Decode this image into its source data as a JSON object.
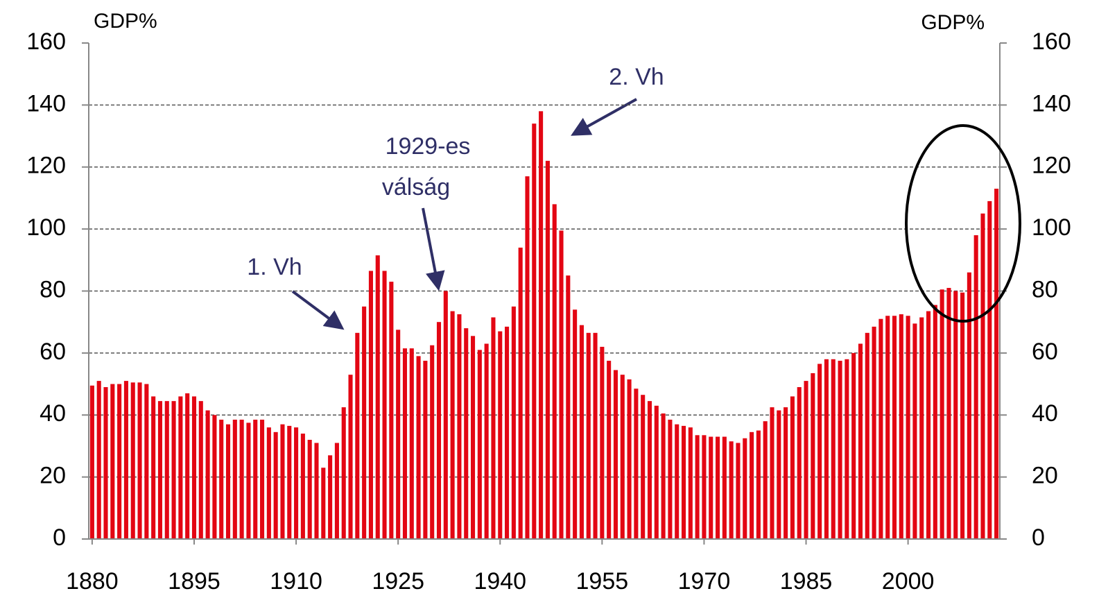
{
  "chart_data": {
    "type": "bar",
    "y_label": "GDP%",
    "y2_label": "GDP%",
    "color": "#e30613",
    "grid": true,
    "x": [
      1880,
      1881,
      1882,
      1883,
      1884,
      1885,
      1886,
      1887,
      1888,
      1889,
      1890,
      1891,
      1892,
      1893,
      1894,
      1895,
      1896,
      1897,
      1898,
      1899,
      1900,
      1901,
      1902,
      1903,
      1904,
      1905,
      1906,
      1907,
      1908,
      1909,
      1910,
      1911,
      1912,
      1913,
      1914,
      1915,
      1916,
      1917,
      1918,
      1919,
      1920,
      1921,
      1922,
      1923,
      1924,
      1925,
      1926,
      1927,
      1928,
      1929,
      1930,
      1931,
      1932,
      1933,
      1934,
      1935,
      1936,
      1937,
      1938,
      1939,
      1940,
      1941,
      1942,
      1943,
      1944,
      1945,
      1946,
      1947,
      1948,
      1949,
      1950,
      1951,
      1952,
      1953,
      1954,
      1955,
      1956,
      1957,
      1958,
      1959,
      1960,
      1961,
      1962,
      1963,
      1964,
      1965,
      1966,
      1967,
      1968,
      1969,
      1970,
      1971,
      1972,
      1973,
      1974,
      1975,
      1976,
      1977,
      1978,
      1979,
      1980,
      1981,
      1982,
      1983,
      1984,
      1985,
      1986,
      1987,
      1988,
      1989,
      1990,
      1991,
      1992,
      1993,
      1994,
      1995,
      1996,
      1997,
      1998,
      1999,
      2000,
      2001,
      2002,
      2003,
      2004,
      2005,
      2006,
      2007,
      2008,
      2009,
      2010,
      2011,
      2012,
      2013
    ],
    "values": [
      49.5,
      51,
      49,
      50,
      50,
      51,
      50.5,
      50.5,
      50,
      46,
      44.5,
      44.5,
      44.5,
      46,
      47,
      46,
      44.5,
      41.5,
      40,
      38.5,
      37,
      38.5,
      38.5,
      37.5,
      38.5,
      38.5,
      36,
      34.5,
      37,
      36.5,
      36,
      34,
      32,
      31,
      23,
      27,
      31,
      42.5,
      53,
      66.5,
      75,
      86.5,
      91.5,
      86.5,
      83,
      67.5,
      61.5,
      61.5,
      59,
      57.5,
      62.5,
      70,
      80,
      73.5,
      72.5,
      68,
      65.5,
      61,
      63,
      71.5,
      67,
      68.5,
      75,
      94,
      117,
      134,
      138,
      122,
      108,
      99.5,
      85,
      74,
      69,
      66.5,
      66.5,
      62,
      57.5,
      54.5,
      53,
      51.5,
      48.5,
      46.5,
      44.5,
      43,
      40.5,
      38.5,
      37,
      36.5,
      36,
      33.5,
      33.5,
      33,
      33,
      33,
      31.5,
      31,
      32.5,
      34.5,
      35,
      38,
      42.5,
      41.5,
      42.5,
      46,
      49,
      51,
      53.5,
      56.5,
      58,
      58,
      57.5,
      58,
      60,
      63,
      66.5,
      68.5,
      71,
      72,
      72,
      72.5,
      72,
      69.5,
      71.5,
      73.5,
      75.5,
      80.5,
      81,
      80,
      79.5,
      86,
      98,
      105,
      109,
      113
    ],
    "xlim": [
      1879.5,
      2013.5
    ],
    "xticks": [
      1880,
      1895,
      1910,
      1925,
      1940,
      1955,
      1970,
      1985,
      2000
    ],
    "ylim": [
      0,
      160
    ],
    "yticks": [
      0,
      20,
      40,
      60,
      80,
      100,
      120,
      140,
      160
    ],
    "y2lim": [
      0,
      160
    ],
    "y2ticks": [
      0,
      20,
      40,
      60,
      80,
      100,
      120,
      140,
      160
    ],
    "annotations": [
      "1. Vh",
      "1929-es",
      "válság",
      "2. Vh"
    ]
  }
}
